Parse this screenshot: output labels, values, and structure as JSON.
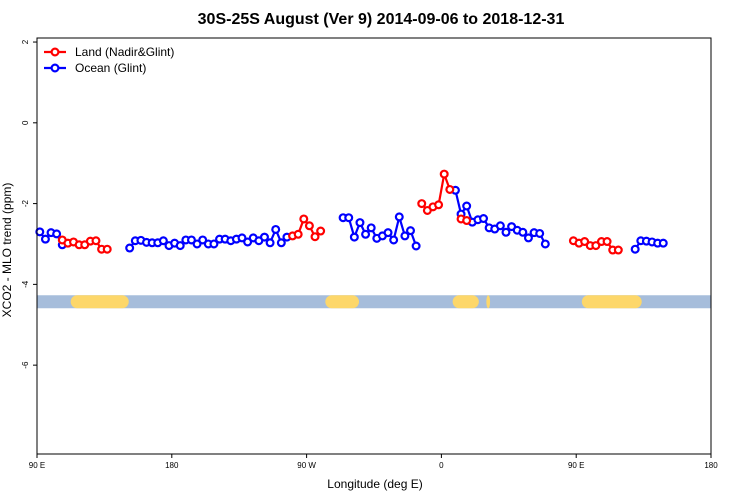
{
  "chart_data": {
    "type": "line",
    "title": "30S-25S August (Ver 9)   2014-09-06 to 2018-12-31",
    "xlabel": "Longitude (deg E)",
    "ylabel": "XCO2 - MLO trend (ppm)",
    "xlim": [
      90,
      450
    ],
    "ylim": [
      -8.2,
      2.1
    ],
    "x_ticks": [
      {
        "value": 90,
        "label": "90 E"
      },
      {
        "value": 162,
        "label": "180"
      },
      {
        "value": 234,
        "label": "90 W"
      },
      {
        "value": 306,
        "label": "0"
      },
      {
        "value": 378,
        "label": "90 E"
      },
      {
        "value": 450,
        "label": "180"
      }
    ],
    "y_ticks": [
      {
        "value": 2,
        "label": "2"
      },
      {
        "value": 0,
        "label": "0"
      },
      {
        "value": -2,
        "label": "-2"
      },
      {
        "value": -4,
        "label": "-4"
      },
      {
        "value": -6,
        "label": "-6"
      }
    ],
    "legend": {
      "position": "top-left",
      "entries": [
        {
          "label": "Land (Nadir&Glint)",
          "color": "#ff0000"
        },
        {
          "label": "Ocean (Glint)",
          "color": "#0000ff"
        }
      ]
    },
    "land_ocean_band": {
      "y": -4.43,
      "ocean_color": "#a6bddb",
      "land_color": "#fdd76a",
      "land_segments": [
        [
          108,
          139
        ],
        [
          244,
          262
        ],
        [
          312,
          326
        ],
        [
          330,
          332
        ],
        [
          381,
          413
        ]
      ]
    },
    "series": [
      {
        "name": "Ocean (Glint)",
        "color": "#0000ff",
        "segments": [
          [
            [
              91.5,
              -2.7
            ],
            [
              94.5,
              -2.88
            ],
            [
              97.5,
              -2.72
            ],
            [
              100.5,
              -2.75
            ],
            [
              103.5,
              -3.02
            ]
          ],
          [
            [
              139.5,
              -3.1
            ],
            [
              142.5,
              -2.92
            ],
            [
              145.5,
              -2.91
            ],
            [
              148.5,
              -2.96
            ],
            [
              151.5,
              -2.97
            ],
            [
              154.5,
              -2.97
            ],
            [
              157.5,
              -2.92
            ],
            [
              160.5,
              -3.04
            ],
            [
              163.5,
              -2.98
            ],
            [
              166.5,
              -3.04
            ],
            [
              169.5,
              -2.9
            ],
            [
              172.5,
              -2.9
            ],
            [
              175.5,
              -3.0
            ],
            [
              178.5,
              -2.9
            ],
            [
              181.5,
              -3.0
            ],
            [
              184.5,
              -3.0
            ],
            [
              187.5,
              -2.88
            ],
            [
              190.5,
              -2.88
            ],
            [
              193.5,
              -2.92
            ],
            [
              196.5,
              -2.88
            ],
            [
              199.5,
              -2.85
            ],
            [
              202.5,
              -2.95
            ],
            [
              205.5,
              -2.85
            ],
            [
              208.5,
              -2.92
            ],
            [
              211.5,
              -2.83
            ],
            [
              214.5,
              -2.97
            ],
            [
              217.5,
              -2.64
            ],
            [
              220.5,
              -2.97
            ],
            [
              223.5,
              -2.83
            ]
          ],
          [
            [
              253.5,
              -2.35
            ],
            [
              256.5,
              -2.35
            ],
            [
              259.5,
              -2.83
            ],
            [
              262.5,
              -2.47
            ],
            [
              265.5,
              -2.76
            ],
            [
              268.5,
              -2.6
            ],
            [
              271.5,
              -2.86
            ],
            [
              274.5,
              -2.8
            ],
            [
              277.5,
              -2.72
            ],
            [
              280.5,
              -2.9
            ],
            [
              283.5,
              -2.33
            ],
            [
              286.5,
              -2.8
            ],
            [
              289.5,
              -2.67
            ],
            [
              292.5,
              -3.05
            ]
          ],
          [
            [
              313.5,
              -1.67
            ],
            [
              316.5,
              -2.26
            ],
            [
              319.5,
              -2.06
            ],
            [
              322.5,
              -2.46
            ],
            [
              325.5,
              -2.4
            ],
            [
              328.5,
              -2.37
            ],
            [
              331.5,
              -2.6
            ],
            [
              334.5,
              -2.63
            ],
            [
              337.5,
              -2.55
            ],
            [
              340.5,
              -2.71
            ],
            [
              343.5,
              -2.57
            ],
            [
              346.5,
              -2.66
            ],
            [
              349.5,
              -2.71
            ],
            [
              352.5,
              -2.85
            ],
            [
              355.5,
              -2.72
            ],
            [
              358.5,
              -2.74
            ],
            [
              361.5,
              -3.0
            ]
          ],
          [
            [
              409.5,
              -3.13
            ],
            [
              412.5,
              -2.92
            ],
            [
              415.5,
              -2.93
            ],
            [
              418.5,
              -2.95
            ],
            [
              421.5,
              -2.98
            ],
            [
              424.5,
              -2.98
            ]
          ]
        ]
      },
      {
        "name": "Land (Nadir&Glint)",
        "color": "#ff0000",
        "segments": [
          [
            [
              103.5,
              -2.9
            ],
            [
              106.5,
              -2.98
            ],
            [
              109.5,
              -2.95
            ],
            [
              112.5,
              -3.02
            ],
            [
              115.5,
              -3.02
            ],
            [
              118.5,
              -2.93
            ],
            [
              121.5,
              -2.92
            ],
            [
              124.5,
              -3.13
            ],
            [
              127.5,
              -3.13
            ]
          ],
          [
            [
              226.5,
              -2.8
            ],
            [
              229.5,
              -2.76
            ],
            [
              232.5,
              -2.38
            ],
            [
              235.5,
              -2.55
            ],
            [
              238.5,
              -2.82
            ],
            [
              241.5,
              -2.68
            ]
          ],
          [
            [
              295.5,
              -2.0
            ],
            [
              298.5,
              -2.17
            ],
            [
              301.5,
              -2.08
            ],
            [
              304.5,
              -2.03
            ],
            [
              307.5,
              -1.27
            ],
            [
              310.5,
              -1.65
            ]
          ],
          [
            [
              316.5,
              -2.38
            ],
            [
              319.5,
              -2.42
            ]
          ],
          [
            [
              376.5,
              -2.92
            ],
            [
              379.5,
              -2.98
            ],
            [
              382.5,
              -2.94
            ],
            [
              385.5,
              -3.04
            ],
            [
              388.5,
              -3.04
            ],
            [
              391.5,
              -2.94
            ],
            [
              394.5,
              -2.94
            ],
            [
              397.5,
              -3.15
            ],
            [
              400.5,
              -3.15
            ]
          ]
        ]
      }
    ]
  }
}
